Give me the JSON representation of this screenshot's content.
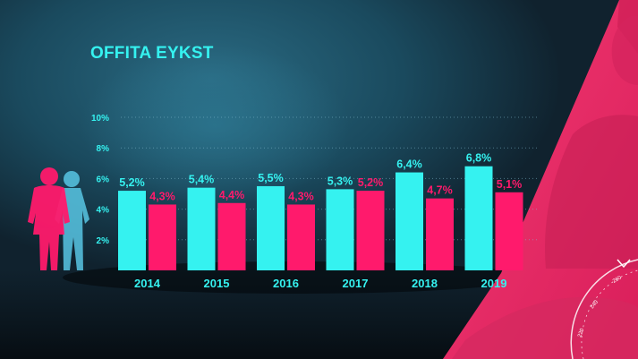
{
  "colors": {
    "accent_cyan": "#35f2f0",
    "accent_magenta": "#ff1a6c",
    "background": "#14313f",
    "pink_panel": "#ee2a69"
  },
  "icons": [
    "people-silhouette-icon",
    "speedometer-gauge-icon"
  ],
  "chart_data": {
    "type": "bar",
    "title": "OFFITA EYKST",
    "categories": [
      "2014",
      "2015",
      "2016",
      "2017",
      "2018",
      "2019"
    ],
    "series": [
      {
        "values": [
          5.2,
          5.4,
          5.5,
          5.3,
          6.4,
          6.8
        ],
        "labels": [
          "5,2%",
          "5,4%",
          "5,5%",
          "5,3%",
          "6,4%",
          "6,8%"
        ],
        "color": "#35f2f0"
      },
      {
        "values": [
          4.3,
          4.4,
          4.3,
          5.2,
          4.7,
          5.1
        ],
        "labels": [
          "4,3%",
          "4,4%",
          "4,3%",
          "5,2%",
          "4,7%",
          "5,1%"
        ],
        "color": "#ff1a6c"
      }
    ],
    "yticks": [
      "2%",
      "4%",
      "6%",
      "8%",
      "10%"
    ],
    "ylim": [
      0,
      10
    ],
    "grid": true,
    "legend": "none"
  },
  "gauge": {
    "ticks": [
      "220",
      "240",
      "260"
    ]
  }
}
